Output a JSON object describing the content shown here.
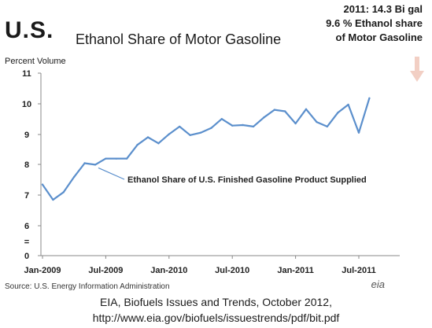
{
  "header": {
    "country": "U.S.",
    "callout_lines": [
      "2011: 14.3 Bi gal",
      "9.6 % Ethanol share",
      "of Motor Gasoline"
    ]
  },
  "source_note": "Source: U.S. Energy Information Administration",
  "logo_text": "eia",
  "citation_lines": [
    "EIA, Biofuels Issues and Trends, October 2012,",
    "http://www.eia.gov/biofuels/issuestrends/pdf/bit.pdf"
  ],
  "colors": {
    "line": "#5b8fcc",
    "axis": "#888888",
    "arrow": "#f2cfc4"
  },
  "chart_data": {
    "type": "line",
    "title": "Ethanol Share of Motor Gasoline",
    "ylabel": "Percent Volume",
    "xlabel": "",
    "y_ticks": [
      "11",
      "10",
      "9",
      "8",
      "7",
      "6",
      "=",
      "0"
    ],
    "x_tick_labels": [
      "Jan-2009",
      "Jul-2009",
      "Jan-2010",
      "Jul-2010",
      "Jan-2011",
      "Jul-2011"
    ],
    "x_ticks_months": [
      "2009-01",
      "2009-07",
      "2010-01",
      "2010-07",
      "2011-01",
      "2011-07"
    ],
    "ylim": [
      6,
      11
    ],
    "y_axis_break": true,
    "grid": false,
    "series": [
      {
        "name": "Ethanol Share of U.S. Finished Gasoline Product Supplied",
        "x": [
          "2009-01",
          "2009-02",
          "2009-03",
          "2009-04",
          "2009-05",
          "2009-06",
          "2009-07",
          "2009-08",
          "2009-09",
          "2009-10",
          "2009-11",
          "2009-12",
          "2010-01",
          "2010-02",
          "2010-03",
          "2010-04",
          "2010-05",
          "2010-06",
          "2010-07",
          "2010-08",
          "2010-09",
          "2010-10",
          "2010-11",
          "2010-12",
          "2011-01",
          "2011-02",
          "2011-03",
          "2011-04",
          "2011-05",
          "2011-06",
          "2011-07",
          "2011-08"
        ],
        "values": [
          7.35,
          6.85,
          7.1,
          7.6,
          8.05,
          8.0,
          8.2,
          8.2,
          8.2,
          8.65,
          8.9,
          8.7,
          9.0,
          9.25,
          8.97,
          9.05,
          9.2,
          9.5,
          9.28,
          9.3,
          9.25,
          9.55,
          9.8,
          9.75,
          9.35,
          9.82,
          9.4,
          9.25,
          9.7,
          9.97,
          9.05,
          10.18
        ]
      }
    ]
  }
}
